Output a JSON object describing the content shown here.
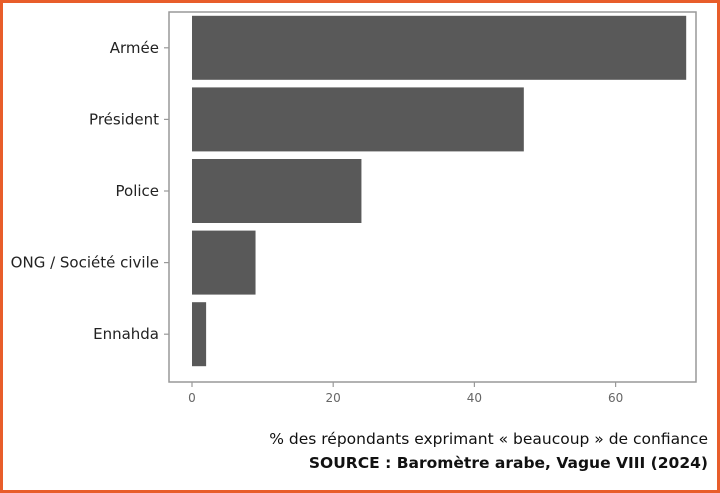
{
  "colors": {
    "frame_border": "#e85d2a",
    "bar": "#595959",
    "panel_border": "#999999"
  },
  "chart_data": {
    "type": "bar",
    "orientation": "horizontal",
    "categories": [
      "Armée",
      "Président",
      "Police",
      "ONG / Société civile",
      "Ennahda"
    ],
    "values": [
      70,
      47,
      24,
      9,
      2
    ],
    "xlabel": "% des répondants exprimant « beaucoup » de confiance",
    "ylabel": "",
    "xlim": [
      0,
      72
    ],
    "xticks": [
      0,
      20,
      40,
      60
    ],
    "grid": false,
    "source": "SOURCE : Baromètre arabe, Vague VIII (2024)"
  }
}
